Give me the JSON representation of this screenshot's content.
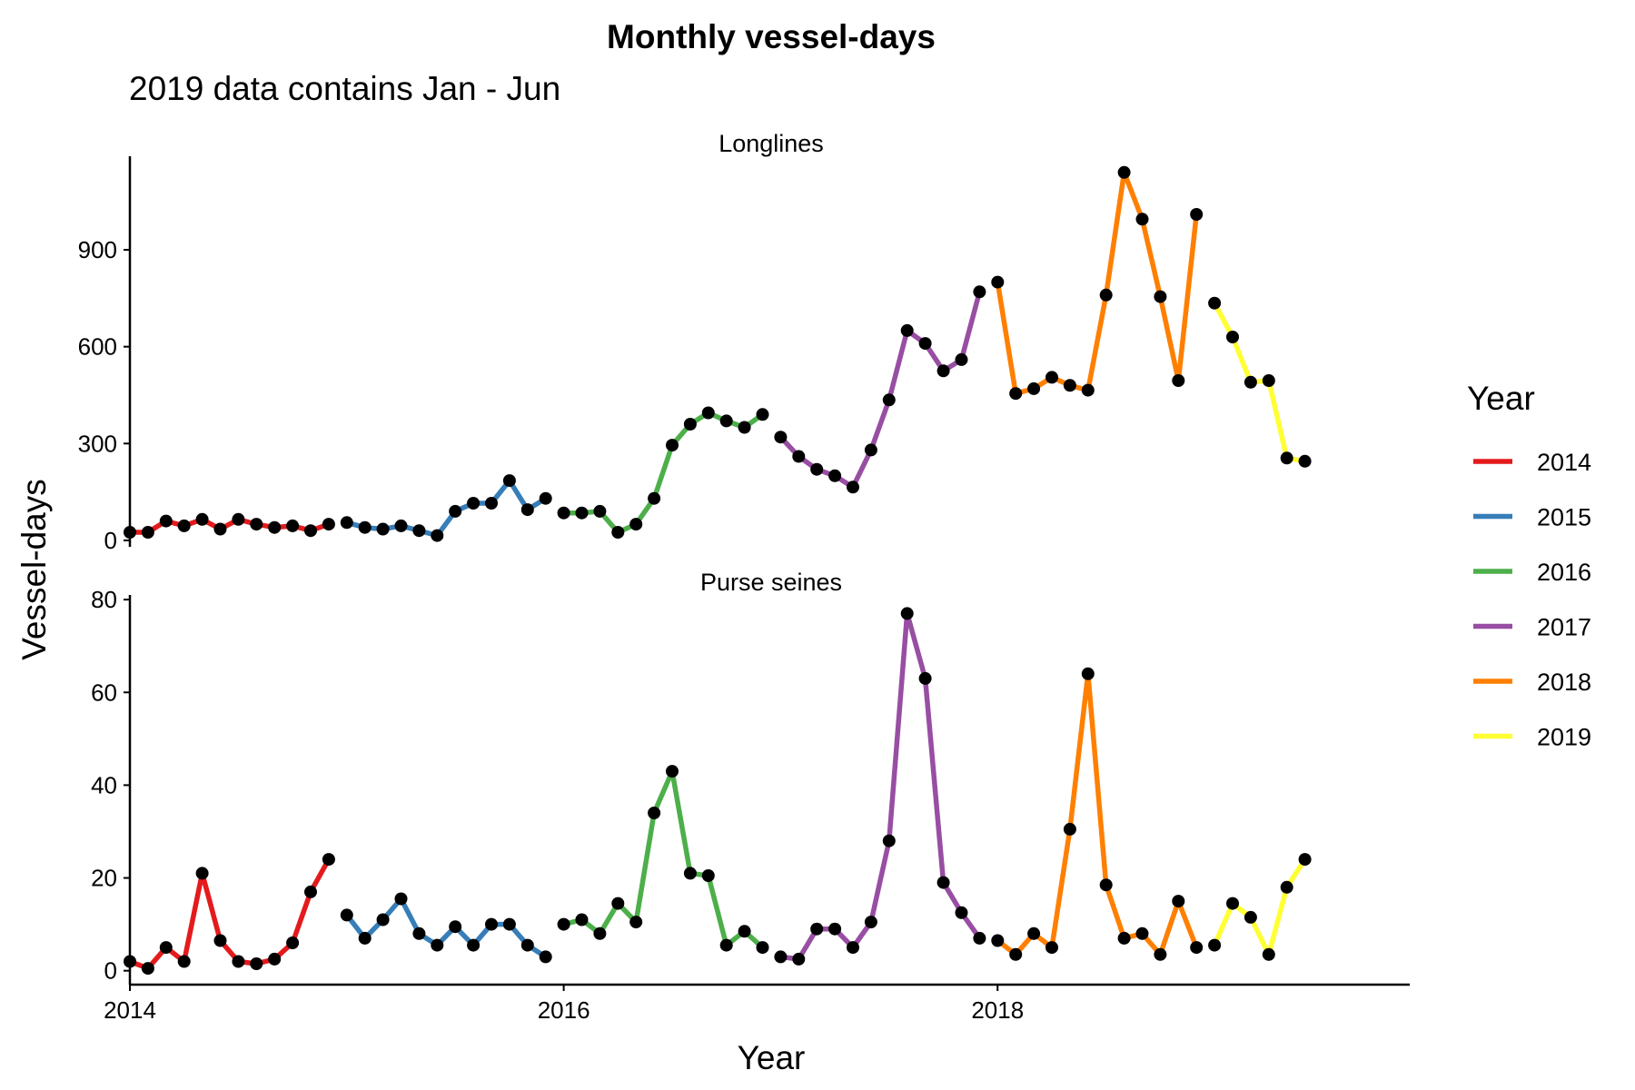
{
  "chart_data": {
    "type": "line",
    "title": "Monthly vessel-days",
    "subtitle": "2019 data contains Jan - Jun",
    "xlabel": "Year",
    "ylabel": "Vessel-days",
    "x_ticks": [
      "2014",
      "2016",
      "2018"
    ],
    "grid": false,
    "legend": {
      "title": "Year",
      "position": "right",
      "items": [
        {
          "label": "2014",
          "color": "#E41A1C"
        },
        {
          "label": "2015",
          "color": "#377EB8"
        },
        {
          "label": "2016",
          "color": "#4DAF4A"
        },
        {
          "label": "2017",
          "color": "#984EA3"
        },
        {
          "label": "2018",
          "color": "#FF7F00"
        },
        {
          "label": "2019",
          "color": "#FFFF33"
        }
      ]
    },
    "point_color": "#000000",
    "panels": [
      {
        "name": "Longlines",
        "y_ticks": [
          0,
          300,
          600,
          900
        ],
        "ylim": [
          -20,
          1190
        ],
        "series": [
          {
            "name": "2014",
            "values": [
              25,
              25,
              60,
              45,
              65,
              35,
              65,
              50,
              40,
              45,
              30,
              50
            ]
          },
          {
            "name": "2015",
            "values": [
              55,
              40,
              35,
              45,
              30,
              15,
              90,
              115,
              115,
              185,
              95,
              130
            ]
          },
          {
            "name": "2016",
            "values": [
              85,
              85,
              90,
              25,
              50,
              130,
              295,
              360,
              395,
              370,
              350,
              390
            ]
          },
          {
            "name": "2017",
            "values": [
              320,
              260,
              220,
              200,
              165,
              280,
              435,
              650,
              610,
              525,
              560,
              770
            ]
          },
          {
            "name": "2018",
            "values": [
              800,
              455,
              470,
              505,
              480,
              465,
              760,
              1140,
              995,
              755,
              495,
              1010
            ]
          },
          {
            "name": "2019",
            "values": [
              735,
              630,
              490,
              495,
              255,
              245
            ]
          }
        ]
      },
      {
        "name": "Purse seines",
        "y_ticks": [
          0,
          20,
          40,
          60,
          80
        ],
        "ylim": [
          -3,
          81
        ],
        "series": [
          {
            "name": "2014",
            "values": [
              2,
              0.5,
              5,
              2,
              21,
              6.5,
              2,
              1.5,
              2.5,
              6,
              17,
              24
            ]
          },
          {
            "name": "2015",
            "values": [
              12,
              7,
              11,
              15.5,
              8,
              5.5,
              9.5,
              5.5,
              10,
              10,
              5.5,
              3
            ]
          },
          {
            "name": "2016",
            "values": [
              10,
              11,
              8,
              14.5,
              10.5,
              34,
              43,
              21,
              20.5,
              5.5,
              8.5,
              5
            ]
          },
          {
            "name": "2017",
            "values": [
              3,
              2.5,
              9,
              9,
              5,
              10.5,
              28,
              77,
              63,
              19,
              12.5,
              7
            ]
          },
          {
            "name": "2018",
            "values": [
              6.5,
              3.5,
              8,
              5,
              30.5,
              64,
              18.5,
              7,
              8,
              3.5,
              15,
              5
            ]
          },
          {
            "name": "2019",
            "values": [
              5.5,
              14.5,
              11.5,
              3.5,
              18,
              24
            ]
          }
        ]
      }
    ]
  }
}
